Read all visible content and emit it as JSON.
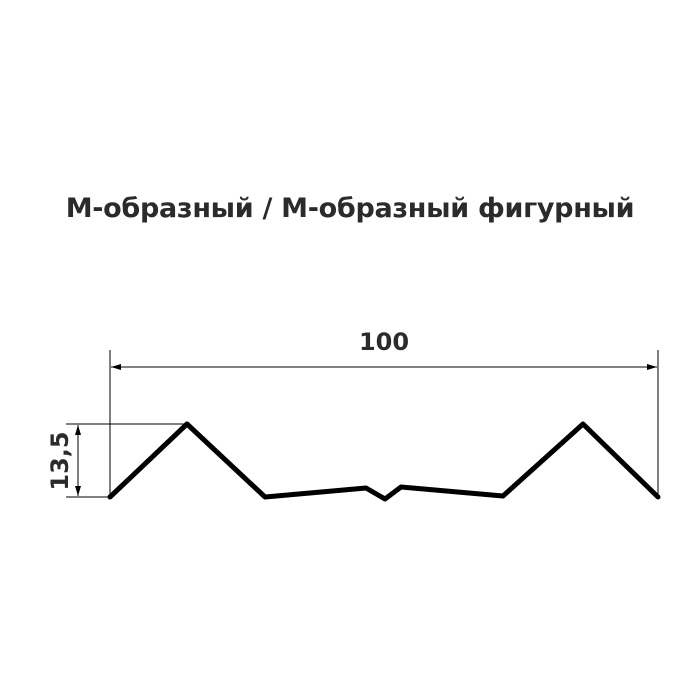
{
  "title": "М-образный / М-образный фигурный",
  "dimensions": {
    "width_label": "100",
    "height_label": "13,5"
  },
  "colors": {
    "profile": "#000000",
    "text": "#2b2b2b"
  }
}
